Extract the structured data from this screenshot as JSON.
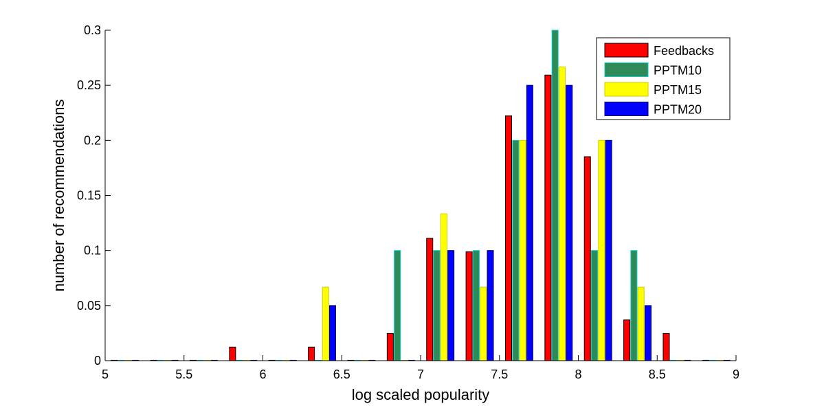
{
  "chart_data": {
    "type": "bar",
    "xlabel": "log scaled popularity",
    "ylabel": "number of recommendations",
    "xlim": [
      5,
      9
    ],
    "ylim": [
      0,
      0.3
    ],
    "xticks": [
      "5",
      "5.5",
      "6",
      "6.5",
      "7",
      "7.5",
      "8",
      "8.5",
      "9"
    ],
    "yticks": [
      "0",
      "0.05",
      "0.1",
      "0.15",
      "0.2",
      "0.25",
      "0.3"
    ],
    "grid": false,
    "legend_position": "top-right",
    "x": [
      5.125,
      5.375,
      5.625,
      5.875,
      6.125,
      6.375,
      6.625,
      6.875,
      7.125,
      7.375,
      7.625,
      7.875,
      8.125,
      8.375,
      8.625,
      8.875
    ],
    "series": [
      {
        "name": "Feedbacks",
        "color": "#ff0000",
        "edge": "#000000",
        "values": [
          0,
          0,
          0,
          0.0123,
          0,
          0.0123,
          0,
          0.0247,
          0.1111,
          0.0988,
          0.2222,
          0.2593,
          0.1852,
          0.037,
          0.0247,
          0
        ]
      },
      {
        "name": "PPTM10",
        "color": "#2e8b57",
        "edge": "#00cccc",
        "values": [
          0,
          0,
          0,
          0,
          0,
          0,
          0,
          0.1,
          0.1,
          0.1,
          0.2,
          0.3,
          0.1,
          0.1,
          0,
          0
        ]
      },
      {
        "name": "PPTM15",
        "color": "#ffff00",
        "edge": "#cccc00",
        "values": [
          0,
          0,
          0,
          0,
          0,
          0.0667,
          0,
          0,
          0.1333,
          0.0667,
          0.2,
          0.2667,
          0.2,
          0.0667,
          0,
          0
        ]
      },
      {
        "name": "PPTM20",
        "color": "#0000ff",
        "edge": "#000066",
        "values": [
          0,
          0,
          0,
          0,
          0,
          0.05,
          0,
          0,
          0.1,
          0.1,
          0.25,
          0.25,
          0.2,
          0.05,
          0,
          0
        ]
      }
    ]
  }
}
